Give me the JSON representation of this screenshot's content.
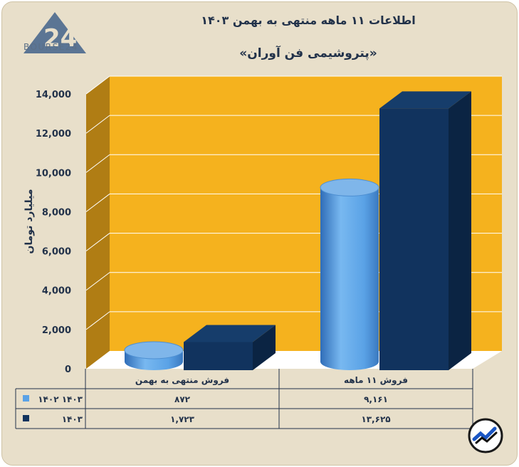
{
  "title": "اطلاعات ۱۱ ماهه منتهی به بهمن ۱۴۰۳",
  "subtitle": "«پتروشیمی فن آوران»",
  "logo_text": "BOURSE24",
  "colors": {
    "series1": "#5aa2e6",
    "series2": "#11335e",
    "wall": "#f5b21e",
    "wall_side": "#b07d14",
    "background": "#e8dfca"
  },
  "chart_data": {
    "type": "bar",
    "categories": [
      "فروش منتهی به  بهمن",
      "فروش ۱۱  ماهه"
    ],
    "series": [
      {
        "name": "۱۴۰۲ ۱۴۰۳",
        "shape": "cylinder",
        "values": [
          872,
          9161
        ],
        "labels": [
          "۸۷۲",
          "۹,۱۶۱"
        ]
      },
      {
        "name": "۱۴۰۳",
        "shape": "box",
        "values": [
          1723,
          13625
        ],
        "labels": [
          "۱,۷۲۳",
          "۱۳,۶۲۵"
        ]
      }
    ],
    "ylabel": "میلیارد تومان",
    "ylim": [
      0,
      14000
    ],
    "yticks": [
      0,
      2000,
      4000,
      6000,
      8000,
      10000,
      12000,
      14000
    ],
    "ytick_labels": [
      "0",
      "2,000",
      "4,000",
      "6,000",
      "8,000",
      "10,000",
      "12,000",
      "14,000"
    ],
    "grid": true,
    "legend": "data-table"
  }
}
